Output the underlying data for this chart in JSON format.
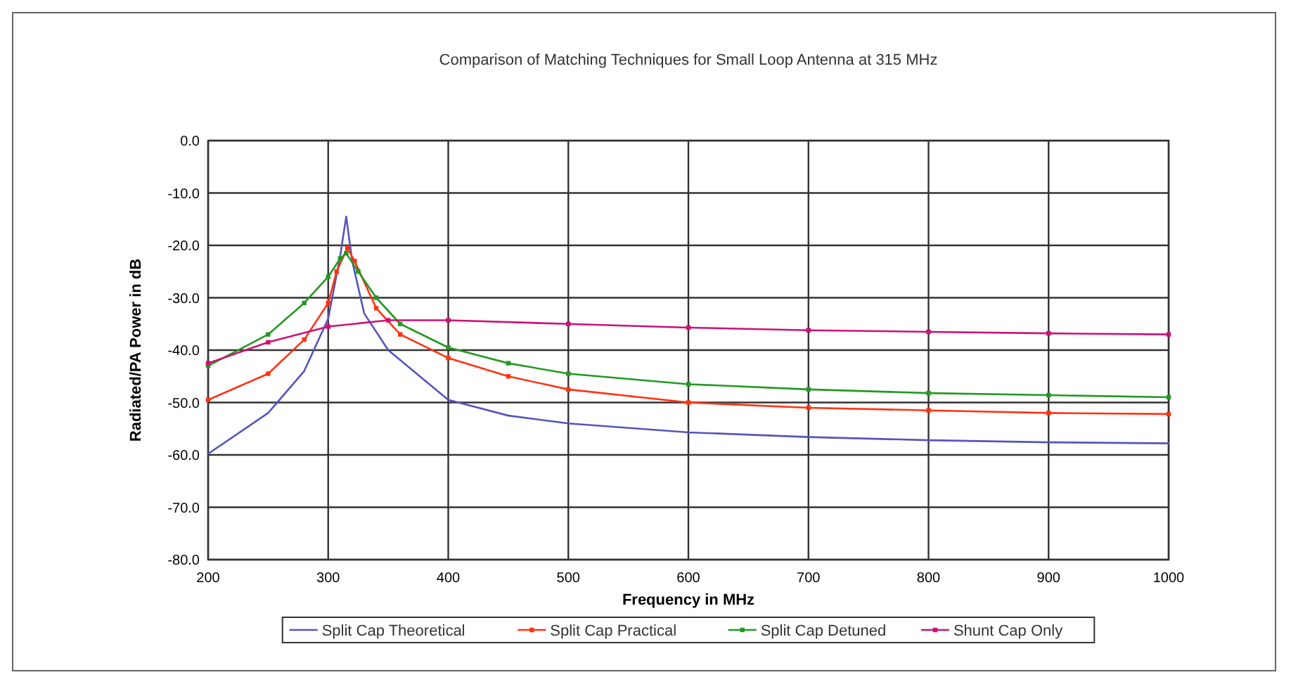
{
  "chart_data": {
    "type": "line",
    "title": "Comparison of Matching Techniques for Small Loop Antenna at 315 MHz",
    "xlabel": "Frequency in MHz",
    "ylabel": "Radiated/PA Power in dB",
    "xlim": [
      200,
      1000
    ],
    "xticks": [
      200,
      300,
      400,
      500,
      600,
      700,
      800,
      900,
      1000
    ],
    "ylim": [
      -80,
      0
    ],
    "yticks": [
      {
        "value": -80,
        "label": "-80.0"
      },
      {
        "value": -70,
        "label": "-70.0"
      },
      {
        "value": -60,
        "label": "-60.0"
      },
      {
        "value": -50,
        "label": "-50.0"
      },
      {
        "value": -40,
        "label": "-40.0"
      },
      {
        "value": -30,
        "label": "-30.0"
      },
      {
        "value": -20,
        "label": "-20.0"
      },
      {
        "value": -10,
        "label": "-10.0"
      },
      {
        "value": 0,
        "label": "0.0"
      }
    ],
    "grid": true,
    "legend": "bottom",
    "line_style": "solid",
    "series": [
      {
        "name": "Split Cap Theoretical",
        "color": "#5555bb",
        "marker": "none",
        "x": [
          200,
          250,
          280,
          300,
          310,
          315,
          320,
          330,
          350,
          400,
          450,
          500,
          600,
          700,
          800,
          900,
          1000
        ],
        "values": [
          -59.8,
          -52,
          -44,
          -34,
          -22,
          -14.5,
          -23,
          -33,
          -40,
          -49.5,
          -52.5,
          -54,
          -55.7,
          -56.6,
          -57.2,
          -57.6,
          -57.8
        ]
      },
      {
        "name": "Split Cap Practical",
        "color": "#ff3311",
        "marker": "square",
        "x": [
          200,
          250,
          280,
          300,
          307,
          316,
          322,
          340,
          360,
          400,
          450,
          500,
          600,
          700,
          800,
          900,
          1000
        ],
        "values": [
          -49.5,
          -44.5,
          -38,
          -31,
          -25,
          -20.5,
          -23,
          -32,
          -37,
          -41.5,
          -45,
          -47.5,
          -50,
          -51,
          -51.5,
          -52,
          -52.2
        ]
      },
      {
        "name": "Split Cap Detuned",
        "color": "#229922",
        "marker": "square",
        "x": [
          200,
          250,
          280,
          300,
          310,
          315,
          325,
          340,
          360,
          400,
          450,
          500,
          600,
          700,
          800,
          900,
          1000
        ],
        "values": [
          -43,
          -37,
          -31,
          -26,
          -22.5,
          -21.5,
          -25,
          -30,
          -35,
          -39.5,
          -42.5,
          -44.5,
          -46.5,
          -47.5,
          -48.2,
          -48.6,
          -49
        ]
      },
      {
        "name": "Shunt Cap Only",
        "color": "#cc1177",
        "marker": "square",
        "x": [
          200,
          250,
          300,
          350,
          400,
          500,
          600,
          700,
          800,
          900,
          1000
        ],
        "values": [
          -42.5,
          -38.5,
          -35.5,
          -34.3,
          -34.3,
          -35,
          -35.7,
          -36.2,
          -36.5,
          -36.8,
          -37
        ]
      }
    ]
  }
}
